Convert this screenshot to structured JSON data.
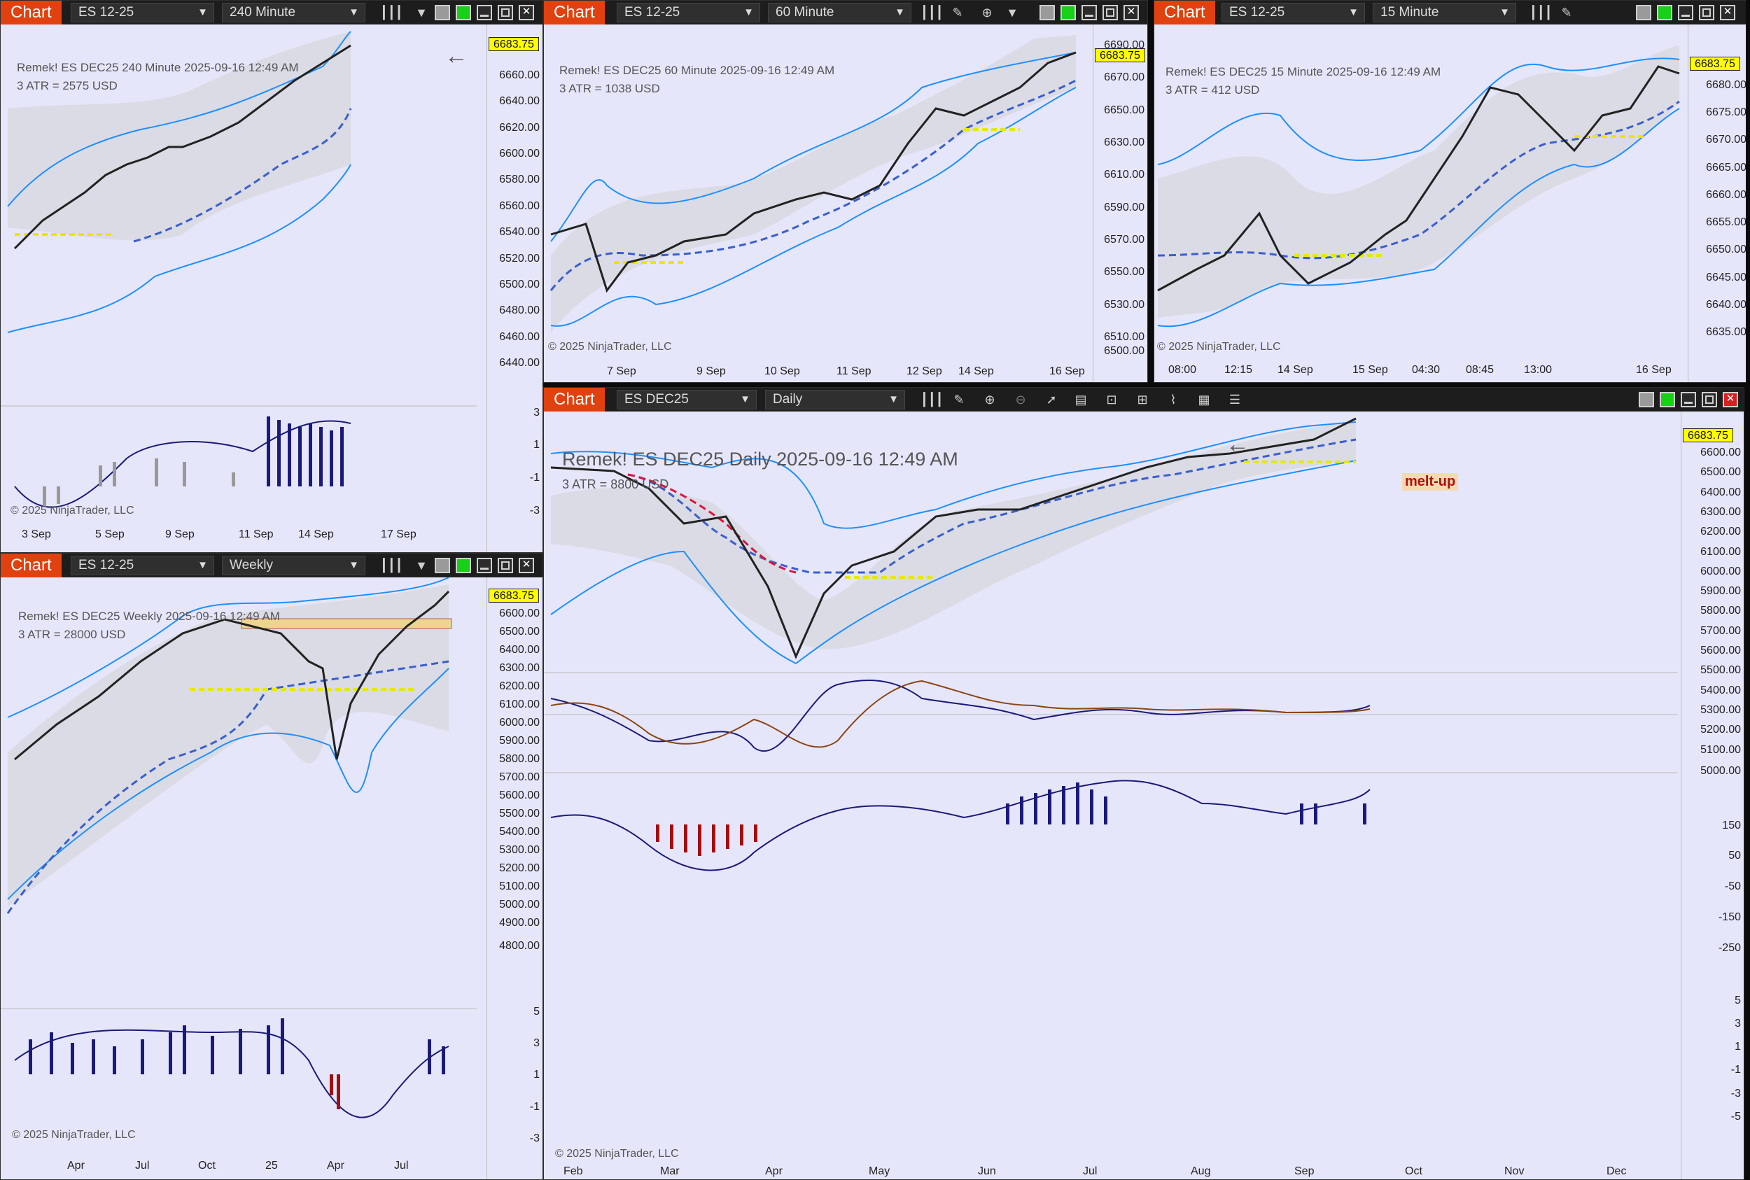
{
  "windows": [
    {
      "id": "w240",
      "chart_label": "Chart",
      "instrument": "ES 12-25",
      "interval": "240 Minute",
      "title_line": "Remek!  ES DEC25  240 Minute  2025-09-16 12:49 AM",
      "atr_line": "3 ATR = 2575 USD",
      "price": "6683.75",
      "copyright": "© 2025 NinjaTrader, LLC",
      "yticks": [
        "6660.00",
        "6640.00",
        "6620.00",
        "6600.00",
        "6580.00",
        "6560.00",
        "6540.00",
        "6520.00",
        "6500.00",
        "6480.00",
        "6460.00",
        "6440.00"
      ],
      "osc_ticks": [
        "3",
        "1",
        "-1",
        "-3"
      ],
      "xticks": [
        "3 Sep",
        "5 Sep",
        "9 Sep",
        "11 Sep",
        "14 Sep",
        "17 Sep"
      ]
    },
    {
      "id": "w60",
      "chart_label": "Chart",
      "instrument": "ES 12-25",
      "interval": "60 Minute",
      "title_line": "Remek!  ES DEC25  60 Minute  2025-09-16 12:49 AM",
      "atr_line": "3 ATR = 1038 USD",
      "price": "6683.75",
      "copyright": "© 2025 NinjaTrader, LLC",
      "yticks": [
        "6690.00",
        "6670.00",
        "6650.00",
        "6630.00",
        "6610.00",
        "6590.00",
        "6570.00",
        "6550.00",
        "6530.00",
        "6510.00",
        "6500.00"
      ],
      "xticks": [
        "7 Sep",
        "9 Sep",
        "10 Sep",
        "11 Sep",
        "12 Sep",
        "14 Sep",
        "16 Sep"
      ]
    },
    {
      "id": "w15",
      "chart_label": "Chart",
      "instrument": "ES 12-25",
      "interval": "15 Minute",
      "title_line": "Remek!  ES DEC25  15 Minute  2025-09-16 12:49 AM",
      "atr_line": "3 ATR = 412 USD",
      "price": "6683.75",
      "copyright": "© 2025 NinjaTrader, LLC",
      "yticks": [
        "6680.00",
        "6675.00",
        "6670.00",
        "6665.00",
        "6660.00",
        "6655.00",
        "6650.00",
        "6645.00",
        "6640.00",
        "6635.00"
      ],
      "xticks": [
        "08:00",
        "12:15",
        "14 Sep",
        "15 Sep",
        "04:30",
        "08:45",
        "13:00",
        "16 Sep"
      ]
    },
    {
      "id": "wweekly",
      "chart_label": "Chart",
      "instrument": "ES 12-25",
      "interval": "Weekly",
      "title_line": "Remek!  ES DEC25  Weekly  2025-09-16 12:49 AM",
      "atr_line": "3 ATR = 28000 USD",
      "price": "6683.75",
      "copyright": "© 2025 NinjaTrader, LLC",
      "yticks": [
        "6600.00",
        "6500.00",
        "6400.00",
        "6300.00",
        "6200.00",
        "6100.00",
        "6000.00",
        "5900.00",
        "5800.00",
        "5700.00",
        "5600.00",
        "5500.00",
        "5400.00",
        "5300.00",
        "5200.00",
        "5100.00",
        "5000.00",
        "4900.00",
        "4800.00"
      ],
      "osc_ticks": [
        "5",
        "3",
        "1",
        "-1",
        "-3"
      ],
      "xticks": [
        "Apr",
        "Jul",
        "Oct",
        "25",
        "Apr",
        "Jul"
      ]
    },
    {
      "id": "wdaily",
      "chart_label": "Chart",
      "instrument": "ES DEC25",
      "interval": "Daily",
      "title_line": "Remek!  ES DEC25  Daily  2025-09-16 12:49 AM",
      "atr_line": "3 ATR = 8800 USD",
      "price": "6683.75",
      "copyright": "© 2025 NinjaTrader, LLC",
      "annotation": "melt-up",
      "yticks": [
        "6600.00",
        "6500.00",
        "6400.00",
        "6300.00",
        "6200.00",
        "6100.00",
        "6000.00",
        "5900.00",
        "5800.00",
        "5700.00",
        "5600.00",
        "5500.00",
        "5400.00",
        "5300.00",
        "5200.00",
        "5100.00",
        "5000.00"
      ],
      "osc1_ticks": [
        "150",
        "50",
        "-50",
        "-150",
        "-250"
      ],
      "osc2_ticks": [
        "5",
        "3",
        "1",
        "-1",
        "-3",
        "-5"
      ],
      "xticks": [
        "Feb",
        "Mar",
        "Apr",
        "May",
        "Jun",
        "Jul",
        "Aug",
        "Sep",
        "Oct",
        "Nov",
        "Dec"
      ]
    }
  ],
  "icons": [
    "bars-icon",
    "draw-icon",
    "zoom-in-icon",
    "zoom-out-icon",
    "pointer-icon",
    "data-box-icon",
    "properties-icon",
    "strategies-icon",
    "indicators-icon",
    "list-icon",
    "back-arrow-icon"
  ],
  "colors": {
    "panel_bg": "#e6e6fa",
    "chart_button": "#e1410e",
    "price_marker": "#ffff00",
    "band": "#1e90ff",
    "trend_up": "#3a5fcd",
    "trend_down": "#dc143c",
    "osc_bar_up": "#1a1a7a",
    "osc_bar_down": "#a01010",
    "annotation": "#b01010"
  }
}
